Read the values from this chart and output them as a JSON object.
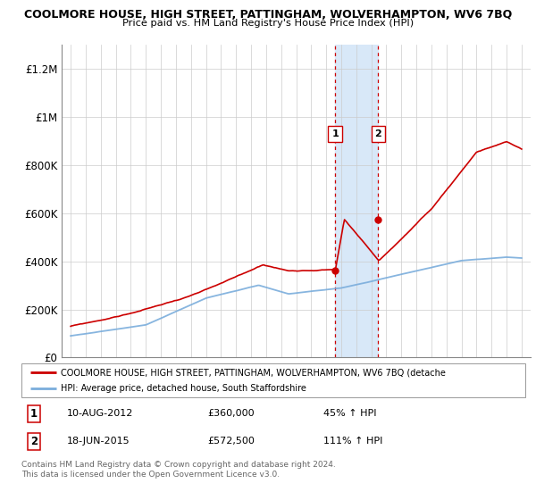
{
  "title": "COOLMORE HOUSE, HIGH STREET, PATTINGHAM, WOLVERHAMPTON, WV6 7BQ",
  "subtitle": "Price paid vs. HM Land Registry's House Price Index (HPI)",
  "ylim": [
    0,
    1300000
  ],
  "yticks": [
    0,
    200000,
    400000,
    600000,
    800000,
    1000000,
    1200000
  ],
  "ytick_labels": [
    "£0",
    "£200K",
    "£400K",
    "£600K",
    "£800K",
    "£1M",
    "£1.2M"
  ],
  "x_start_year": 1995,
  "x_end_year": 2025,
  "transaction1_date": 2012.6,
  "transaction1_price": 360000,
  "transaction1_date_str": "10-AUG-2012",
  "transaction1_hpi": "45% ↑ HPI",
  "transaction2_date": 2015.46,
  "transaction2_price": 572500,
  "transaction2_date_str": "18-JUN-2015",
  "transaction2_hpi": "111% ↑ HPI",
  "hpi_color": "#7aaddc",
  "price_color": "#cc0000",
  "highlight_color": "#d8e8f8",
  "legend_label_price": "COOLMORE HOUSE, HIGH STREET, PATTINGHAM, WOLVERHAMPTON, WV6 7BQ (detache",
  "legend_label_hpi": "HPI: Average price, detached house, South Staffordshire",
  "footer": "Contains HM Land Registry data © Crown copyright and database right 2024.\nThis data is licensed under the Open Government Licence v3.0."
}
